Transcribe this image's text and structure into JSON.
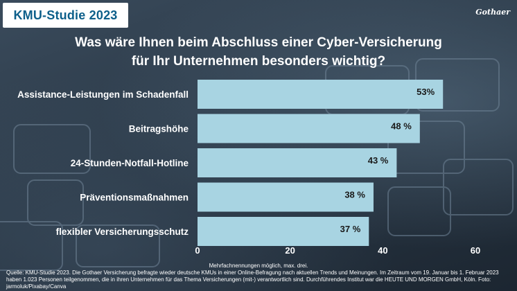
{
  "header": {
    "badge": "KMU-Studie 2023",
    "brand": "Gothaer"
  },
  "title_lines": [
    "Was wäre Ihnen beim Abschluss einer Cyber-Versicherung",
    "für Ihr Unternehmen besonders wichtig?"
  ],
  "chart_data": {
    "type": "bar",
    "orientation": "horizontal",
    "categories": [
      "Assistance-Leistungen im Schadenfall",
      "Beitragshöhe",
      "24-Stunden-Notfall-Hotline",
      "Präventionsmaßnahmen",
      "flexibler Versicherungsschutz"
    ],
    "values": [
      53,
      48,
      43,
      38,
      37
    ],
    "value_labels": [
      "53%",
      "48 %",
      "43 %",
      "38 %",
      "37 %"
    ],
    "xlim": [
      0,
      60
    ],
    "xticks": [
      0,
      20,
      40,
      60
    ],
    "bar_color": "#a8d4e2",
    "grid": false
  },
  "footnote": "Mehrfachnennungen möglich, max. drei.",
  "source": "Quelle: KMU-Studie 2023. Die Gothaer Versicherung befragte wieder deutsche KMUs in einer Online-Befragung nach aktuellen Trends und Meinungen. Im Zeitraum vom 19. Januar bis 1. Februar 2023 haben 1.023 Personen teilgenommen, die in ihren Unternehmen für das Thema Versicherungen (mit-) verantwortlich sind. Durchführendes Institut war die HEUTE UND MORGEN GmbH, Köln. Foto: jarmoluk/Pixabay/Canva"
}
